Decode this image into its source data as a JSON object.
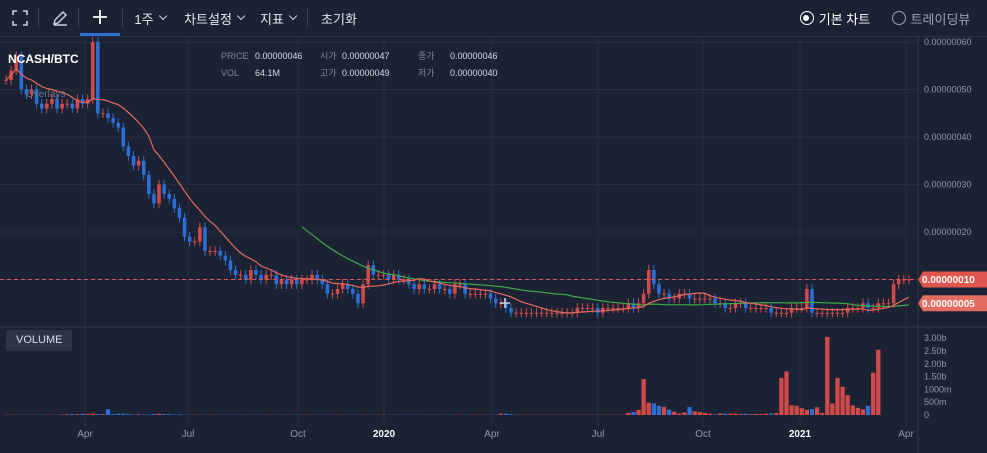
{
  "toolbar": {
    "interval_label": "1주",
    "chart_settings_label": "차트설정",
    "indicator_label": "지표",
    "reset_label": "초기화",
    "view_basic_label": "기본 차트",
    "view_tradingview_label": "트레이딩뷰",
    "selected_view": "basic"
  },
  "legend": {
    "pair": "NCASH/BTC",
    "overlays_label": "Overlays",
    "price_label": "PRICE",
    "price_value": "0.00000046",
    "open_label": "시가",
    "open_value": "0.00000047",
    "close_label": "종가",
    "close_value": "0.00000046",
    "vol_label": "VOL",
    "vol_value": "64.1M",
    "high_label": "고가",
    "high_value": "0.00000049",
    "low_label": "저가",
    "low_value": "0.00000040"
  },
  "volume_panel_label": "VOLUME",
  "colors": {
    "background": "#1b2233",
    "up": "#d04a4a",
    "down": "#2b6fd6",
    "ma_short": "#e36b5f",
    "ma_long": "#3fa84a",
    "price_tag": "#e0564f",
    "ma_tag": "#e36b5f"
  },
  "chart_data": {
    "type": "candlestick",
    "pair": "NCASH/BTC",
    "interval": "1주",
    "y_axis": {
      "min": 0.0,
      "max": 6e-07,
      "ticks": [
        "0.00000060",
        "0.00000050",
        "0.00000040",
        "0.00000030",
        "0.00000020",
        "0.00000010"
      ]
    },
    "x_axis_ticks": [
      "Apr",
      "Jul",
      "Oct",
      "2020",
      "Apr",
      "Jul",
      "Oct",
      "2021",
      "Apr"
    ],
    "price_tags": [
      {
        "label": "0.00000010",
        "value": 1e-07,
        "kind": "last-price"
      },
      {
        "label": "0.00000005",
        "value": 5e-08,
        "kind": "moving-average"
      }
    ],
    "volume_axis": {
      "max": 3.0,
      "ticks": [
        "3.00b",
        "2.50b",
        "2.00b",
        "1.50b",
        "1000m",
        "500m",
        "0"
      ]
    },
    "series": [
      {
        "name": "price",
        "values": [
          52,
          54,
          57,
          50,
          49,
          50,
          47,
          46,
          47,
          48,
          46,
          47,
          47,
          46,
          48,
          47,
          48,
          60,
          45,
          45,
          44,
          43,
          42,
          38,
          36,
          34,
          35,
          32,
          28,
          26,
          30,
          28,
          27,
          25,
          23,
          19,
          18,
          18,
          21,
          16,
          16,
          16,
          15,
          14,
          12,
          11,
          11,
          10,
          12,
          11,
          10,
          11,
          11,
          9,
          10,
          9,
          10,
          9,
          10,
          10,
          11,
          10,
          9,
          7,
          7,
          8,
          9,
          8,
          7,
          5,
          9,
          13,
          11,
          11,
          11,
          10,
          11,
          10,
          10,
          9,
          8,
          9,
          8,
          8,
          9,
          8,
          8,
          7,
          9,
          9,
          7,
          7,
          7,
          7,
          7,
          6,
          5,
          5,
          4,
          3,
          3,
          3,
          3,
          3,
          3,
          3,
          3,
          3,
          3,
          3,
          3,
          3,
          4,
          4,
          4,
          4,
          3,
          4,
          4,
          4,
          4,
          4,
          5,
          4,
          5,
          7,
          12,
          9,
          7,
          7,
          6,
          6,
          7,
          7,
          6,
          6,
          6,
          6,
          6,
          5,
          5,
          4,
          4,
          5,
          5,
          4,
          4,
          4,
          4,
          4,
          3,
          3,
          3,
          3,
          4,
          4,
          4,
          8,
          3,
          3,
          3,
          3,
          3,
          3,
          3,
          4,
          4,
          4,
          5,
          4,
          4,
          5,
          5,
          5,
          9,
          10,
          10,
          10
        ]
      }
    ],
    "volume": [
      0.01,
      0.01,
      0.01,
      0.01,
      0.01,
      0.01,
      0.01,
      0.01,
      0.01,
      0.01,
      0.01,
      0.02,
      0.03,
      0.04,
      0.03,
      0.05,
      0.04,
      0.05,
      0.04,
      0.03,
      0.22,
      0.03,
      0.05,
      0.05,
      0.03,
      0.02,
      0.03,
      0.02,
      0.02,
      0.04,
      0.05,
      0.04,
      0.03,
      0.02,
      0.02,
      0.01,
      0.01,
      0.01,
      0.01,
      0.01,
      0.01,
      0.01,
      0.01,
      0.01,
      0.01,
      0.01,
      0.01,
      0.01,
      0.01,
      0.01,
      0.01,
      0.01,
      0.01,
      0.01,
      0.01,
      0.01,
      0.01,
      0.01,
      0.01,
      0.01,
      0.01,
      0.01,
      0.01,
      0.01,
      0.01,
      0.01,
      0.01,
      0.01,
      0.01,
      0.01,
      0.01,
      0.01,
      0.01,
      0.01,
      0.01,
      0.01,
      0.01,
      0.01,
      0.01,
      0.01,
      0.01,
      0.01,
      0.01,
      0.01,
      0.01,
      0.01,
      0.01,
      0.01,
      0.01,
      0.01,
      0.01,
      0.01,
      0.01,
      0.01,
      0.01,
      0.01,
      0.01,
      0.05,
      0.05,
      0.03,
      0.01,
      0.01,
      0.01,
      0.01,
      0.01,
      0.01,
      0.01,
      0.01,
      0.01,
      0.01,
      0.01,
      0.01,
      0.01,
      0.01,
      0.01,
      0.01,
      0.01,
      0.01,
      0.01,
      0.01,
      0.01,
      0.01,
      0.08,
      0.12,
      0.2,
      1.4,
      0.48,
      0.45,
      0.36,
      0.32,
      0.21,
      0.13,
      0.06,
      0.1,
      0.31,
      0.14,
      0.12,
      0.08,
      0.05,
      0.03,
      0.06,
      0.05,
      0.05,
      0.05,
      0.04,
      0.05,
      0.03,
      0.04,
      0.04,
      0.05,
      0.06,
      0.08,
      1.45,
      1.7,
      0.38,
      0.36,
      0.27,
      0.2,
      0.23,
      0.3,
      0.08,
      3.05,
      0.45,
      1.45,
      1.1,
      0.78,
      0.38,
      0.28,
      0.22,
      0.36,
      1.65,
      2.55
    ]
  }
}
